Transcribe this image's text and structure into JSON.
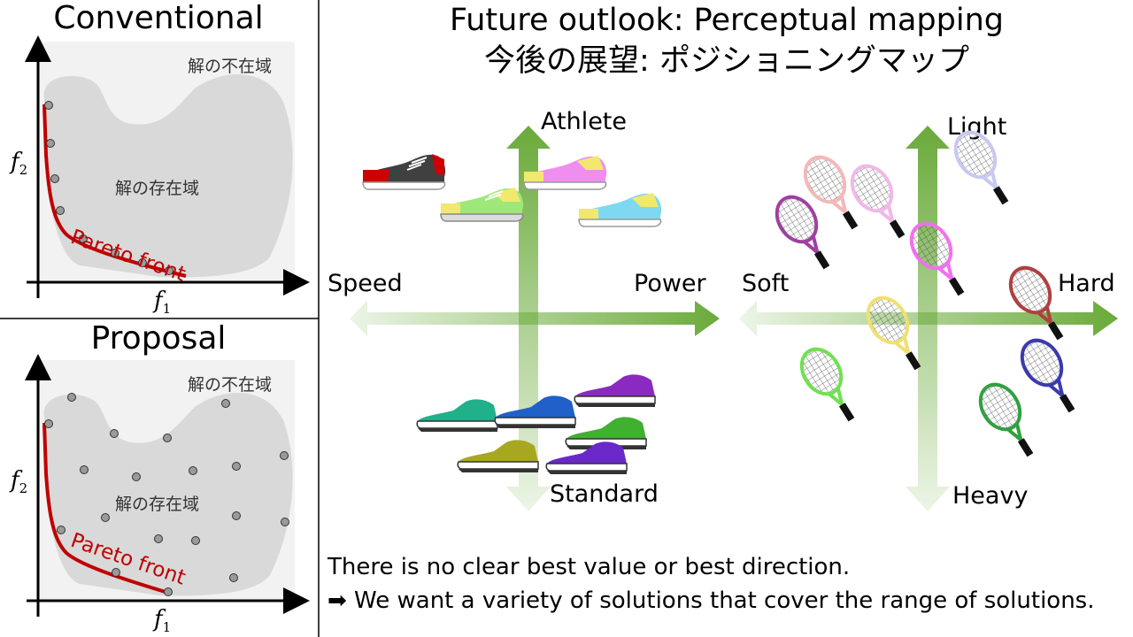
{
  "left_panels": {
    "conventional": {
      "title": "Conventional",
      "infeasible_label": "解の不在域",
      "feasible_label": "解の存在域",
      "pareto_label": "Pareto front",
      "x_axis": "f",
      "x_sub": "1",
      "y_axis": "f",
      "y_sub": "2"
    },
    "proposal": {
      "title": "Proposal",
      "infeasible_label": "解の不在域",
      "feasible_label": "解の存在域",
      "pareto_label": "Pareto front",
      "x_axis": "f",
      "x_sub": "1",
      "y_axis": "f",
      "y_sub": "2"
    }
  },
  "main": {
    "title_en": "Future outlook: Perceptual mapping",
    "title_jp": "今後の展望: ポジショニングマップ",
    "shoe_map": {
      "top": "Athlete",
      "bottom": "Standard",
      "left": "Speed",
      "right": "Power"
    },
    "racket_map": {
      "top": "Light",
      "bottom": "Heavy",
      "left": "Soft",
      "right": "Hard"
    },
    "note_line1": "There is no clear best value or best direction.",
    "note_line2": "➡ We want a variety of solutions that cover the range of solutions."
  },
  "colors": {
    "pareto": "#c00000",
    "arrow_green": "#6aaa3a",
    "feasible_region": "#d9d9d9",
    "panel_bg": "#f2f2f2"
  }
}
